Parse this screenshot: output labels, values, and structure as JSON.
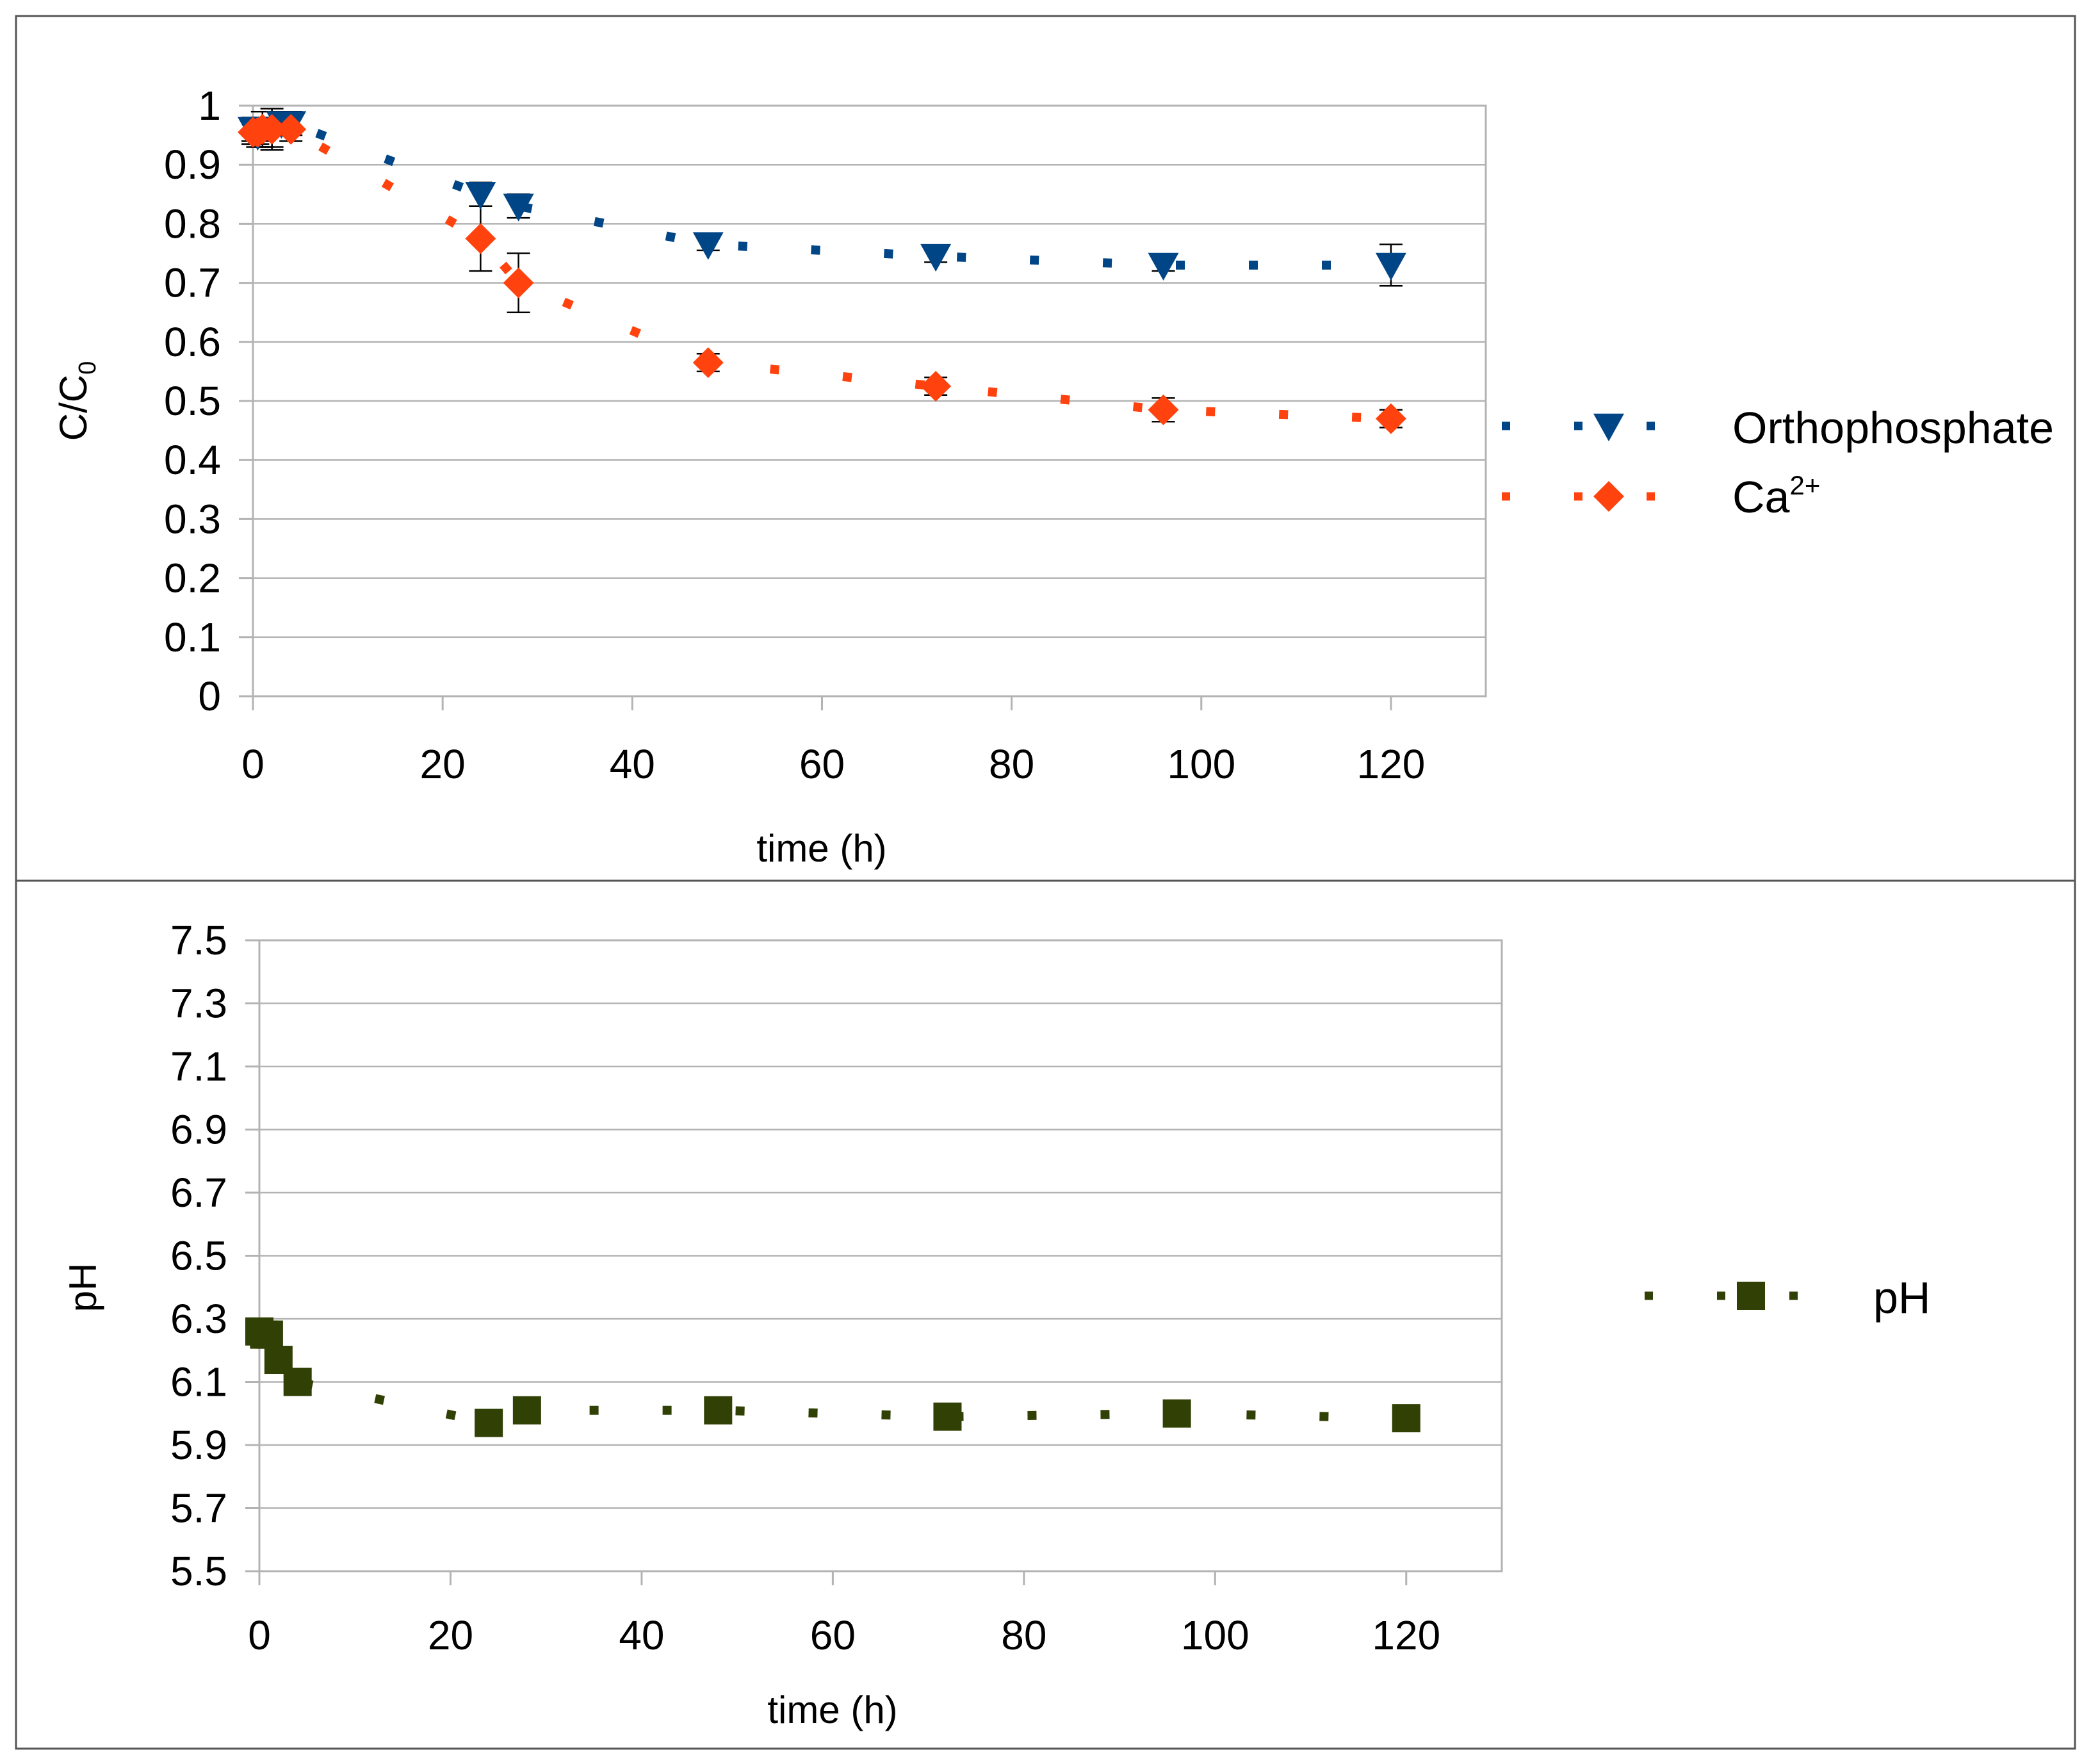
{
  "chart_data": [
    {
      "type": "scatter",
      "xlabel": "time (h)",
      "ylabel_main": "C/C",
      "ylabel_sub": "0",
      "xlim": [
        0,
        130
      ],
      "ylim": [
        0,
        1
      ],
      "xticks": [
        0,
        20,
        40,
        60,
        80,
        100,
        120
      ],
      "xtick_labels": [
        "0",
        "20",
        "40",
        "60",
        "80",
        "100",
        "120"
      ],
      "yticks": [
        0,
        0.1,
        0.2,
        0.3,
        0.4,
        0.5,
        0.6,
        0.7,
        0.8,
        0.9,
        1
      ],
      "ytick_labels": [
        "0",
        "0.1",
        "0.2",
        "0.3",
        "0.4",
        "0.5",
        "0.6",
        "0.7",
        "0.8",
        "0.9",
        "1"
      ],
      "grid": true,
      "legend_position": "right",
      "series": [
        {
          "name": "Orthophosphate",
          "legend_main": "Orthophosphate",
          "legend_sup": "",
          "color": "#004586",
          "marker": "triangle-down",
          "x": [
            0,
            0.5,
            1,
            2,
            3,
            4,
            24,
            28,
            48,
            72,
            96,
            120
          ],
          "y": [
            0.96,
            0.95,
            0.96,
            0.96,
            0.97,
            0.97,
            0.85,
            0.83,
            0.765,
            0.745,
            0.73,
            0.73
          ],
          "err": [
            0.02,
            0.02,
            0.02,
            0.03,
            0.02,
            0.02,
            0.02,
            0.02,
            0.01,
            0.01,
            0.01,
            0.035
          ]
        },
        {
          "name": "Ca2+",
          "legend_main": "Ca",
          "legend_sup": "2+",
          "color": "#ff420e",
          "marker": "diamond",
          "x": [
            0,
            0.5,
            1,
            2,
            4,
            24,
            28,
            48,
            72,
            96,
            120
          ],
          "y": [
            0.955,
            0.955,
            0.96,
            0.96,
            0.96,
            0.775,
            0.7,
            0.565,
            0.525,
            0.485,
            0.47
          ],
          "err": [
            0.02,
            0.02,
            0.03,
            0.035,
            0.02,
            0.055,
            0.05,
            0.015,
            0.015,
            0.02,
            0.015
          ]
        }
      ]
    },
    {
      "type": "scatter",
      "xlabel": "time (h)",
      "ylabel_main": "pH",
      "ylabel_sub": "",
      "xlim": [
        0,
        130
      ],
      "ylim": [
        5.5,
        7.5
      ],
      "xticks": [
        0,
        20,
        40,
        60,
        80,
        100,
        120
      ],
      "xtick_labels": [
        "0",
        "20",
        "40",
        "60",
        "80",
        "100",
        "120"
      ],
      "yticks": [
        5.5,
        5.7,
        5.9,
        6.1,
        6.3,
        6.5,
        6.7,
        6.9,
        7.1,
        7.3,
        7.5
      ],
      "ytick_labels": [
        "5.5",
        "5.7",
        "5.9",
        "6.1",
        "6.3",
        "6.5",
        "6.7",
        "6.9",
        "7.1",
        "7.3",
        "7.5"
      ],
      "grid": true,
      "legend_position": "right",
      "series": [
        {
          "name": "pH",
          "legend_main": "pH",
          "legend_sup": "",
          "color": "#314004",
          "marker": "square",
          "x": [
            0,
            0.5,
            1,
            2,
            4,
            24,
            28,
            48,
            72,
            96,
            120
          ],
          "y": [
            6.26,
            6.25,
            6.25,
            6.17,
            6.1,
            5.97,
            6.01,
            6.01,
            5.99,
            6.0,
            5.985
          ],
          "err": [
            0,
            0,
            0,
            0,
            0,
            0,
            0,
            0,
            0,
            0,
            0
          ]
        }
      ]
    }
  ]
}
